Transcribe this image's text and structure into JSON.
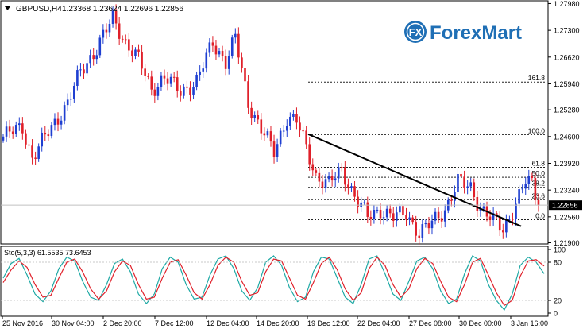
{
  "header": {
    "symbol": "GBPUSD,H4",
    "ohlc": "1.23368 1.23624 1.22696 1.22856"
  },
  "logo": {
    "badge": "FX",
    "text": "ForexMart",
    "color": "#1f6fb5"
  },
  "colors": {
    "bull": "#1f3fd1",
    "bear": "#e0202a",
    "grid": "#c8c8c8",
    "fib": "#222222",
    "trend": "#000000",
    "sto_main": "#1ea9a5",
    "sto_signal": "#e0202a"
  },
  "chart_data": [
    {
      "type": "candlestick",
      "symbol": "GBPUSD",
      "timeframe": "H4",
      "current_price": "1.22856",
      "ylim": [
        1.2187,
        1.2805
      ],
      "y_ticks": [
        "1.27980",
        "1.27300",
        "1.26620",
        "1.25940",
        "1.25280",
        "1.24600",
        "1.23920",
        "1.23240",
        "1.22560",
        "1.21900"
      ],
      "x_ticks": [
        "25 Nov 2016",
        "30 Nov 04:00",
        "2 Dec 20:00",
        "7 Dec 12:00",
        "12 Dec 04:00",
        "14 Dec 20:00",
        "19 Dec 12:00",
        "22 Dec 04:00",
        "27 Dec 08:00",
        "30 Dec 00:00",
        "3 Jan 16:00"
      ],
      "anchors": [
        {
          "i": 0,
          "v": 1.246
        },
        {
          "i": 6,
          "v": 1.2485
        },
        {
          "i": 9,
          "v": 1.2405
        },
        {
          "i": 14,
          "v": 1.2472
        },
        {
          "i": 20,
          "v": 1.2545
        },
        {
          "i": 24,
          "v": 1.2625
        },
        {
          "i": 29,
          "v": 1.2685
        },
        {
          "i": 34,
          "v": 1.276
        },
        {
          "i": 38,
          "v": 1.27
        },
        {
          "i": 42,
          "v": 1.2655
        },
        {
          "i": 46,
          "v": 1.258
        },
        {
          "i": 50,
          "v": 1.261
        },
        {
          "i": 55,
          "v": 1.2575
        },
        {
          "i": 60,
          "v": 1.26
        },
        {
          "i": 65,
          "v": 1.27
        },
        {
          "i": 69,
          "v": 1.265
        },
        {
          "i": 72,
          "v": 1.271
        },
        {
          "i": 76,
          "v": 1.2545
        },
        {
          "i": 80,
          "v": 1.248
        },
        {
          "i": 84,
          "v": 1.242
        },
        {
          "i": 88,
          "v": 1.251
        },
        {
          "i": 91,
          "v": 1.25
        },
        {
          "i": 94,
          "v": 1.243
        },
        {
          "i": 97,
          "v": 1.236
        },
        {
          "i": 101,
          "v": 1.234
        },
        {
          "i": 105,
          "v": 1.2375
        },
        {
          "i": 109,
          "v": 1.231
        },
        {
          "i": 113,
          "v": 1.2255
        },
        {
          "i": 117,
          "v": 1.2275
        },
        {
          "i": 121,
          "v": 1.2255
        },
        {
          "i": 125,
          "v": 1.2265
        },
        {
          "i": 129,
          "v": 1.2215
        },
        {
          "i": 133,
          "v": 1.224
        },
        {
          "i": 137,
          "v": 1.2275
        },
        {
          "i": 141,
          "v": 1.2345
        },
        {
          "i": 145,
          "v": 1.233
        },
        {
          "i": 148,
          "v": 1.228
        },
        {
          "i": 152,
          "v": 1.2245
        },
        {
          "i": 155,
          "v": 1.2225
        },
        {
          "i": 159,
          "v": 1.229
        },
        {
          "i": 162,
          "v": 1.2345
        },
        {
          "i": 164,
          "v": 1.234
        },
        {
          "i": 166,
          "v": 1.2286
        }
      ],
      "candle_count": 167,
      "fibonacci": [
        {
          "label": "161.8",
          "value": 1.25985
        },
        {
          "label": "100.0",
          "value": 1.2465
        },
        {
          "label": "61.8",
          "value": 1.2382
        },
        {
          "label": "50.0",
          "value": 1.23565
        },
        {
          "label": "38.2",
          "value": 1.2331
        },
        {
          "label": "23.6",
          "value": 1.22995
        },
        {
          "label": "0.0",
          "value": 1.22485
        }
      ],
      "trendline": [
        {
          "i": 116,
          "v": 1.2466
        },
        {
          "i": 198,
          "v": 1.2232
        }
      ]
    },
    {
      "type": "line",
      "title": "Sto(5,3,3) 61.5535 73.6453",
      "ylim": [
        0,
        100
      ],
      "y_ticks": [
        "100",
        "80",
        "20",
        "0"
      ],
      "levels": [
        80,
        20
      ],
      "series": [
        {
          "name": "Main",
          "values": [
            55,
            78,
            86,
            60,
            30,
            18,
            35,
            70,
            88,
            82,
            50,
            25,
            20,
            45,
            78,
            85,
            65,
            30,
            15,
            30,
            70,
            88,
            80,
            45,
            22,
            25,
            60,
            85,
            90,
            70,
            35,
            20,
            40,
            80,
            90,
            75,
            40,
            18,
            25,
            65,
            88,
            85,
            55,
            25,
            15,
            45,
            85,
            90,
            62,
            30,
            20,
            50,
            82,
            88,
            70,
            35,
            15,
            22,
            62,
            90,
            82,
            45,
            20,
            5,
            30,
            75,
            88,
            80,
            62
          ]
        },
        {
          "name": "Signal",
          "values": [
            48,
            68,
            82,
            72,
            45,
            25,
            28,
            55,
            80,
            85,
            65,
            38,
            22,
            35,
            65,
            82,
            75,
            45,
            22,
            25,
            55,
            80,
            84,
            60,
            32,
            22,
            45,
            75,
            88,
            80,
            50,
            28,
            32,
            65,
            85,
            82,
            55,
            28,
            22,
            48,
            78,
            88,
            68,
            38,
            20,
            32,
            70,
            88,
            75,
            45,
            25,
            38,
            70,
            86,
            78,
            50,
            25,
            18,
            45,
            80,
            86,
            60,
            32,
            12,
            20,
            58,
            82,
            84,
            74
          ]
        }
      ]
    }
  ]
}
